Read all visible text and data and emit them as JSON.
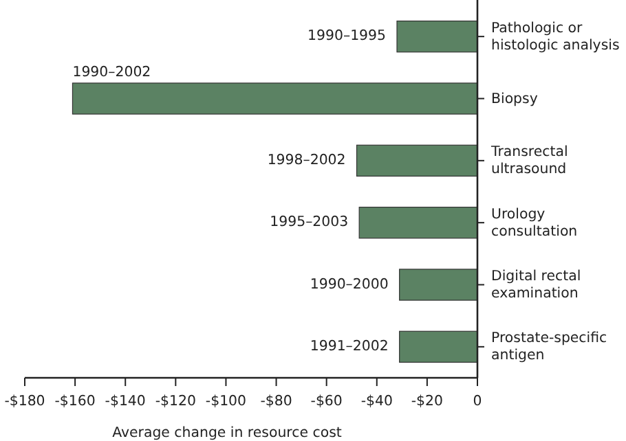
{
  "chart_data": {
    "type": "bar",
    "orientation": "horizontal",
    "xlabel": "Average change in resource cost",
    "categories": [
      "Pathologic or histologic analysis",
      "Biopsy",
      "Transrectal ultrasound",
      "Urology consultation",
      "Digital rectal examination",
      "Prostate-specific antigen"
    ],
    "values": [
      -32,
      -161,
      -48,
      -47,
      -31,
      -31
    ],
    "color": "#5b8263",
    "xlim": [
      -180,
      0
    ],
    "xticks": [
      {
        "value": -180,
        "label": "-$180"
      },
      {
        "value": -160,
        "label": "-$160"
      },
      {
        "value": -140,
        "label": "-$140"
      },
      {
        "value": -120,
        "label": "-$120"
      },
      {
        "value": -100,
        "label": "-$100"
      },
      {
        "value": -80,
        "label": "-$80"
      },
      {
        "value": -60,
        "label": "-$60"
      },
      {
        "value": -40,
        "label": "-$40"
      },
      {
        "value": -20,
        "label": "-$20"
      },
      0
    ],
    "annotations": [
      {
        "text": "1990–1995",
        "x": -32,
        "y": "Pathologic or histologic analysis"
      },
      {
        "text": "1990–2002",
        "x": -161,
        "y": "Biopsy"
      },
      {
        "text": "1998–2002",
        "x": -48,
        "y": "Transrectal ultrasound"
      },
      {
        "text": "1995–2003",
        "x": -47,
        "y": "Urology consultation"
      },
      {
        "text": "1990–2000",
        "x": -31,
        "y": "Digital rectal examination"
      },
      {
        "text": "1991–2002",
        "x": -31,
        "y": "Prostate-specific antigen"
      }
    ],
    "grid": false
  }
}
